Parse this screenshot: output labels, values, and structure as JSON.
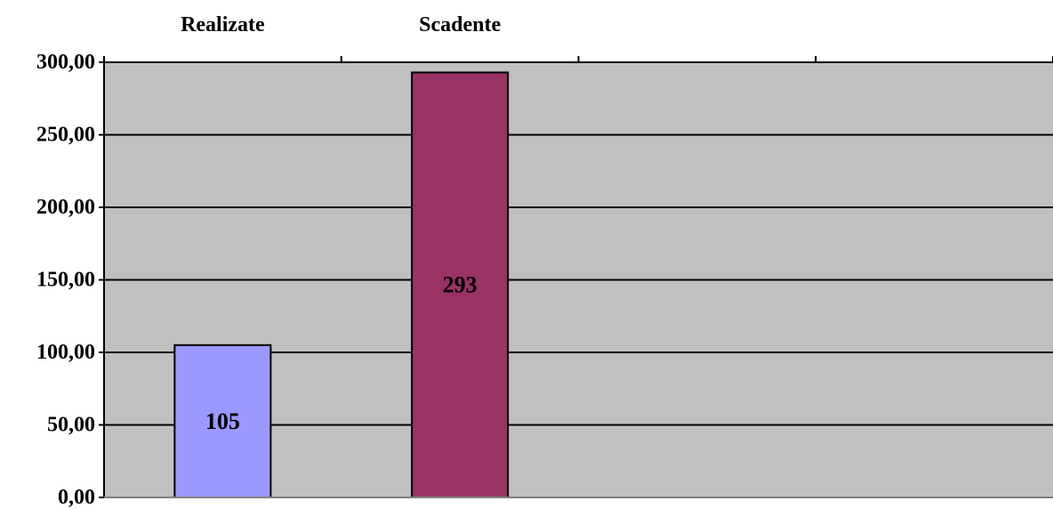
{
  "chart_data": {
    "type": "bar",
    "categories": [
      "Realizate",
      "Scadente"
    ],
    "values": [
      105,
      293
    ],
    "data_labels": [
      "105",
      "293"
    ],
    "y_tick_labels": [
      "0,00",
      "50,00",
      "100,00",
      "150,00",
      "200,00",
      "250,00",
      "300,00"
    ],
    "y_ticks": [
      0,
      50,
      100,
      150,
      200,
      250,
      300
    ],
    "ylim": [
      0,
      300
    ],
    "x_axis_position": "top",
    "slots": 4,
    "grid": true,
    "legend": "none",
    "colors": {
      "plot_background": "#C0C0C0",
      "bars": [
        "#9999FF",
        "#993366"
      ],
      "gridline": "#000000"
    },
    "title": "",
    "xlabel": "",
    "ylabel": ""
  }
}
